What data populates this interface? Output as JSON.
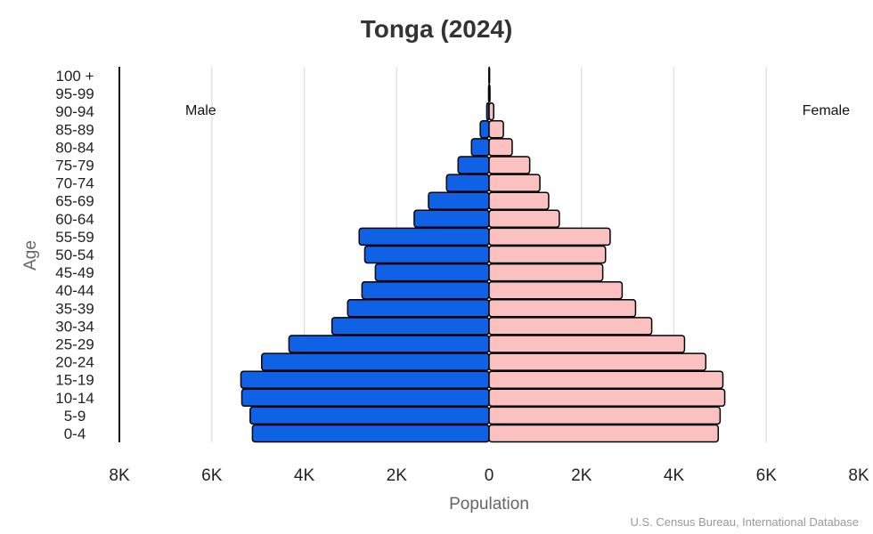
{
  "chart_data": {
    "type": "bar",
    "orientation": "horizontal-pyramid",
    "title": "Tonga (2024)",
    "xlabel": "Population",
    "ylabel": "Age",
    "source": "U.S. Census Bureau, International Database",
    "categories": [
      "0-4",
      "5-9",
      "10-14",
      "15-19",
      "20-24",
      "25-29",
      "30-34",
      "35-39",
      "40-44",
      "45-49",
      "50-54",
      "55-59",
      "60-64",
      "65-69",
      "70-74",
      "75-79",
      "80-84",
      "85-89",
      "90-94",
      "95-99",
      "100 +"
    ],
    "series": [
      {
        "name": "Male",
        "color": "#0f62e6",
        "values": [
          5120,
          5170,
          5350,
          5370,
          4920,
          4330,
          3400,
          3060,
          2750,
          2460,
          2690,
          2810,
          1620,
          1310,
          920,
          670,
          380,
          190,
          50,
          10,
          2
        ]
      },
      {
        "name": "Female",
        "color": "#fbc0c0",
        "values": [
          4960,
          5000,
          5100,
          5060,
          4690,
          4230,
          3520,
          3170,
          2880,
          2460,
          2520,
          2620,
          1520,
          1290,
          1100,
          880,
          500,
          310,
          100,
          20,
          5
        ]
      }
    ],
    "xlim": [
      -8000,
      8000
    ],
    "xticks": [
      -8000,
      -6000,
      -4000,
      -2000,
      0,
      2000,
      4000,
      6000,
      8000
    ],
    "xtick_labels": [
      "8K",
      "6K",
      "4K",
      "2K",
      "0",
      "2K",
      "4K",
      "6K",
      "8K"
    ],
    "grid": true,
    "legend": "inline labels top-left (Male) and top-right (Female)"
  }
}
